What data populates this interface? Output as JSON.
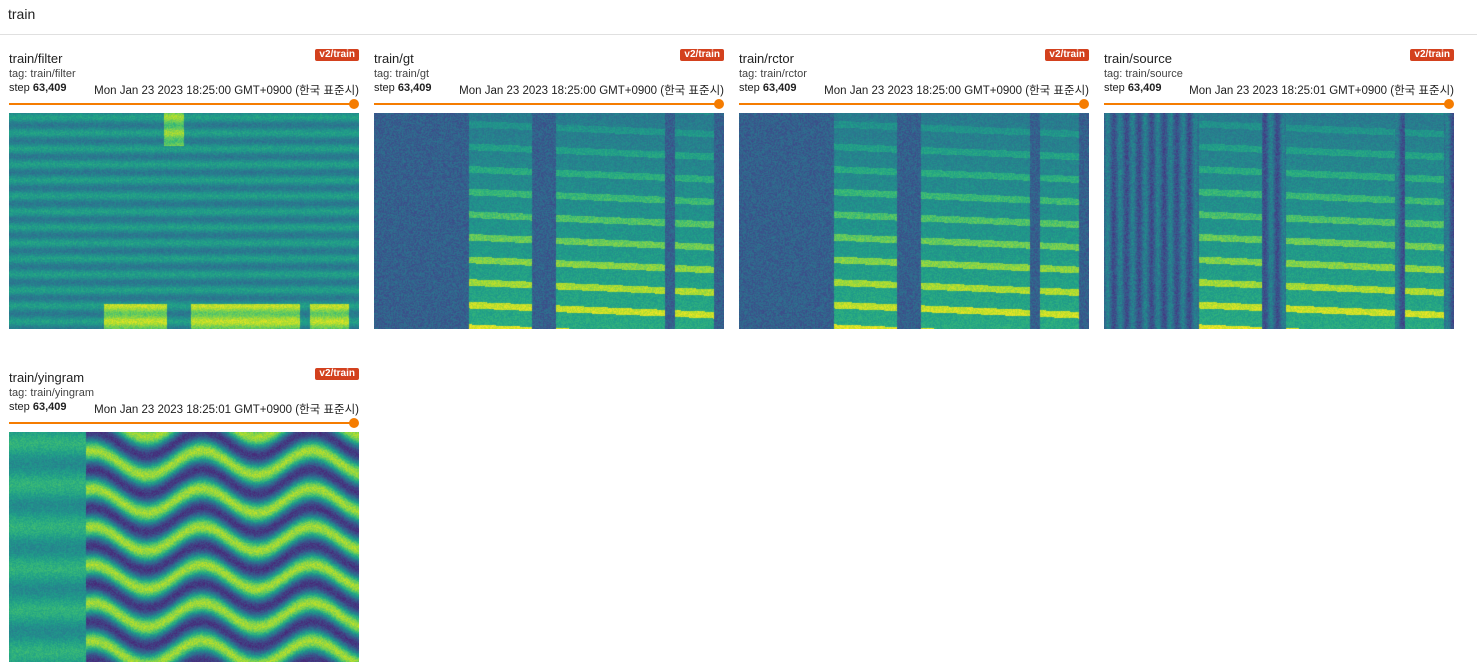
{
  "group": {
    "title": "train"
  },
  "colors": {
    "accent": "#f57c00",
    "badge": "#d3411e"
  },
  "cards": [
    {
      "title": "train/filter",
      "badge": "v2/train",
      "tag": "tag: train/filter",
      "step_label": "step",
      "step": "63,409",
      "timestamp": "Mon Jan 23 2023 18:25:00 GMT+0900 (한국 표준시)",
      "image": "spectrogram"
    },
    {
      "title": "train/gt",
      "badge": "v2/train",
      "tag": "tag: train/gt",
      "step_label": "step",
      "step": "63,409",
      "timestamp": "Mon Jan 23 2023 18:25:00 GMT+0900 (한국 표준시)",
      "image": "spectrogram"
    },
    {
      "title": "train/rctor",
      "badge": "v2/train",
      "tag": "tag: train/rctor",
      "step_label": "step",
      "step": "63,409",
      "timestamp": "Mon Jan 23 2023 18:25:00 GMT+0900 (한국 표준시)",
      "image": "spectrogram"
    },
    {
      "title": "train/source",
      "badge": "v2/train",
      "tag": "tag: train/source",
      "step_label": "step",
      "step": "63,409",
      "timestamp": "Mon Jan 23 2023 18:25:01 GMT+0900 (한국 표준시)",
      "image": "spectrogram"
    },
    {
      "title": "train/yingram",
      "badge": "v2/train",
      "tag": "tag: train/yingram",
      "step_label": "step",
      "step": "63,409",
      "timestamp": "Mon Jan 23 2023 18:25:01 GMT+0900 (한국 표준시)",
      "image": "yingram"
    }
  ]
}
